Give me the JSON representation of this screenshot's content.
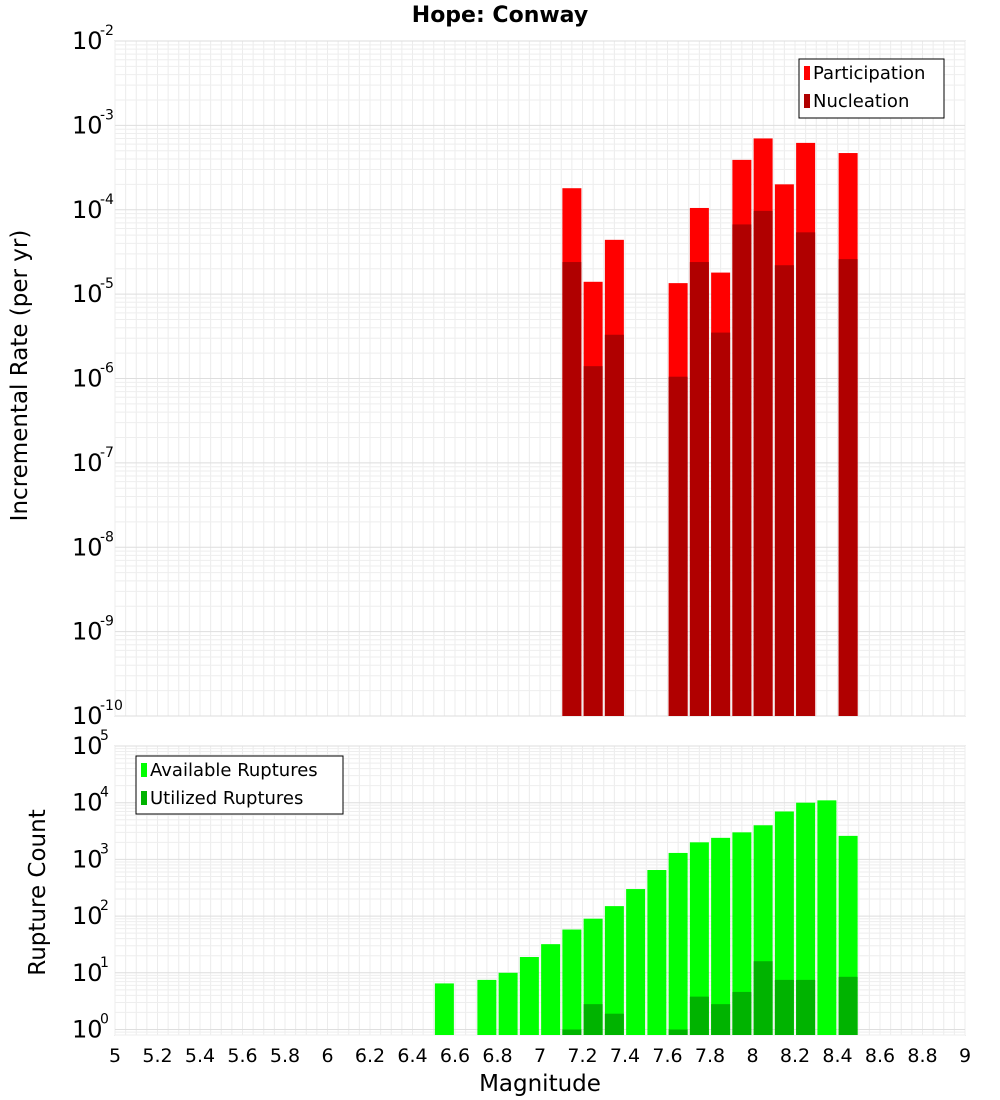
{
  "title": "Hope: Conway",
  "chart_data": [
    {
      "type": "bar",
      "scale": "log",
      "ylabel": "Incremental Rate (per yr)",
      "ylim": [
        1e-10,
        0.01
      ],
      "y_ticks": [
        {
          "base": "10",
          "exp": "-2",
          "value": 0.01
        },
        {
          "base": "10",
          "exp": "-3",
          "value": 0.001
        },
        {
          "base": "10",
          "exp": "-4",
          "value": 0.0001
        },
        {
          "base": "10",
          "exp": "-5",
          "value": 1e-05
        },
        {
          "base": "10",
          "exp": "-6",
          "value": 1e-06
        },
        {
          "base": "10",
          "exp": "-7",
          "value": 1e-07
        },
        {
          "base": "10",
          "exp": "-8",
          "value": 1e-08
        },
        {
          "base": "10",
          "exp": "-9",
          "value": 1e-09
        },
        {
          "base": "10",
          "exp": "-10",
          "value": 1e-10
        }
      ],
      "legend_position": "top-right",
      "series": [
        {
          "name": "Participation",
          "color": "#ff0000",
          "x": [
            7.15,
            7.25,
            7.35,
            7.65,
            7.75,
            7.85,
            7.95,
            8.05,
            8.15,
            8.25,
            8.45
          ],
          "values": [
            0.00018,
            1.4e-05,
            4.4e-05,
            1.35e-05,
            0.000105,
            1.8e-05,
            0.00039,
            0.0007,
            0.0002,
            0.00062,
            0.00047
          ]
        },
        {
          "name": "Nucleation",
          "color": "#b00000",
          "x": [
            7.15,
            7.25,
            7.35,
            7.65,
            7.75,
            7.85,
            7.95,
            8.05,
            8.15,
            8.25,
            8.45
          ],
          "values": [
            2.4e-05,
            1.4e-06,
            3.3e-06,
            1.05e-06,
            2.4e-05,
            3.5e-06,
            6.7e-05,
            9.7e-05,
            2.2e-05,
            5.4e-05,
            2.6e-05
          ]
        }
      ]
    },
    {
      "type": "bar",
      "scale": "log",
      "xlabel": "Magnitude",
      "ylabel": "Rupture Count",
      "xlim": [
        5,
        9
      ],
      "ylim": [
        0.8,
        100000.0
      ],
      "x_ticks": [
        "5",
        "5.2",
        "5.4",
        "5.6",
        "5.8",
        "6",
        "6.2",
        "6.4",
        "6.6",
        "6.8",
        "7",
        "7.2",
        "7.4",
        "7.6",
        "7.8",
        "8",
        "8.2",
        "8.4",
        "8.6",
        "8.8",
        "9"
      ],
      "y_ticks": [
        {
          "base": "10",
          "exp": "5",
          "value": 100000.0
        },
        {
          "base": "10",
          "exp": "4",
          "value": 10000.0
        },
        {
          "base": "10",
          "exp": "3",
          "value": 1000.0
        },
        {
          "base": "10",
          "exp": "2",
          "value": 100.0
        },
        {
          "base": "10",
          "exp": "1",
          "value": 10.0
        },
        {
          "base": "10",
          "exp": "0",
          "value": 1
        }
      ],
      "legend_position": "top-left",
      "series": [
        {
          "name": "Available Ruptures",
          "color": "#00ff00",
          "x": [
            6.55,
            6.75,
            6.85,
            6.95,
            7.05,
            7.15,
            7.25,
            7.35,
            7.45,
            7.55,
            7.65,
            7.75,
            7.85,
            7.95,
            8.05,
            8.15,
            8.25,
            8.35,
            8.45
          ],
          "values": [
            6.5,
            7.5,
            10,
            19,
            32,
            58,
            90,
            150,
            300,
            650,
            1300,
            2000,
            2400,
            3000,
            4000,
            7000,
            10000,
            11000,
            2600
          ]
        },
        {
          "name": "Utilized Ruptures",
          "color": "#00b300",
          "x": [
            7.15,
            7.25,
            7.35,
            7.65,
            7.75,
            7.85,
            7.95,
            8.05,
            8.15,
            8.25,
            8.45
          ],
          "values": [
            1,
            2.8,
            1.9,
            1,
            3.8,
            2.8,
            4.6,
            16,
            7.5,
            7.5,
            8.5
          ]
        }
      ]
    }
  ]
}
